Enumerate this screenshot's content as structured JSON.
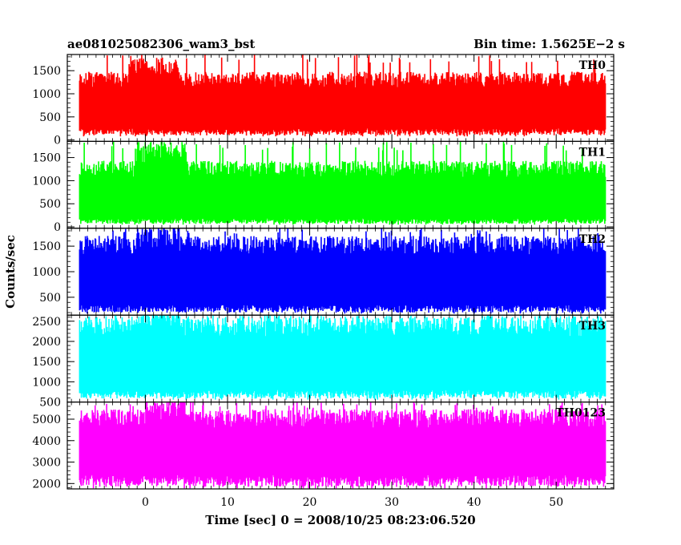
{
  "header": {
    "left_title": "ae081025082306_wam3_bst",
    "right_title": "Bin time: 1.5625E−2 s"
  },
  "chart_data": {
    "type": "line",
    "title": "ae081025082306_wam3_bst",
    "subtitle": "Bin time: 1.5625E−2 s",
    "xlabel": "Time [sec] 0 = 2008/10/25 08:23:06.520",
    "ylabel": "Counts/sec",
    "xlim": [
      -9.5,
      57
    ],
    "x_data_range": [
      -8,
      56
    ],
    "xticks": [
      0,
      10,
      20,
      30,
      40,
      50
    ],
    "grid": false,
    "panels": [
      {
        "name": "TH0",
        "color": "#ff0000",
        "ylim": [
          -30,
          1850
        ],
        "yticks": [
          0,
          500,
          1000,
          1500
        ],
        "envelope": {
          "low": 250,
          "high": 1250,
          "min": 80,
          "max": 1850
        },
        "burst": {
          "start": -2,
          "end": 4,
          "high": 1500
        }
      },
      {
        "name": "TH1",
        "color": "#00ff00",
        "ylim": [
          -30,
          1850
        ],
        "yticks": [
          0,
          500,
          1000,
          1500
        ],
        "envelope": {
          "low": 180,
          "high": 1200,
          "min": 50,
          "max": 1850
        },
        "burst": {
          "start": -1,
          "end": 5,
          "high": 1550
        }
      },
      {
        "name": "TH2",
        "color": "#0000ff",
        "ylim": [
          150,
          1850
        ],
        "yticks": [
          500,
          1000,
          1500
        ],
        "envelope": {
          "low": 350,
          "high": 1450,
          "min": 180,
          "max": 1850
        },
        "burst": {
          "start": -1,
          "end": 4,
          "high": 1600
        }
      },
      {
        "name": "TH3",
        "color": "#00ffff",
        "ylim": [
          500,
          2650
        ],
        "yticks": [
          500,
          1000,
          1500,
          2000,
          2500
        ],
        "envelope": {
          "low": 800,
          "high": 2300,
          "min": 560,
          "max": 2650
        },
        "burst": {
          "start": -1,
          "end": 4,
          "high": 2450
        }
      },
      {
        "name": "TH0123",
        "color": "#ff00ff",
        "ylim": [
          1750,
          5800
        ],
        "yticks": [
          2000,
          3000,
          4000,
          5000
        ],
        "envelope": {
          "low": 2400,
          "high": 4900,
          "min": 1780,
          "max": 5800
        },
        "burst": {
          "start": 0,
          "end": 6,
          "high": 5300
        }
      }
    ]
  }
}
